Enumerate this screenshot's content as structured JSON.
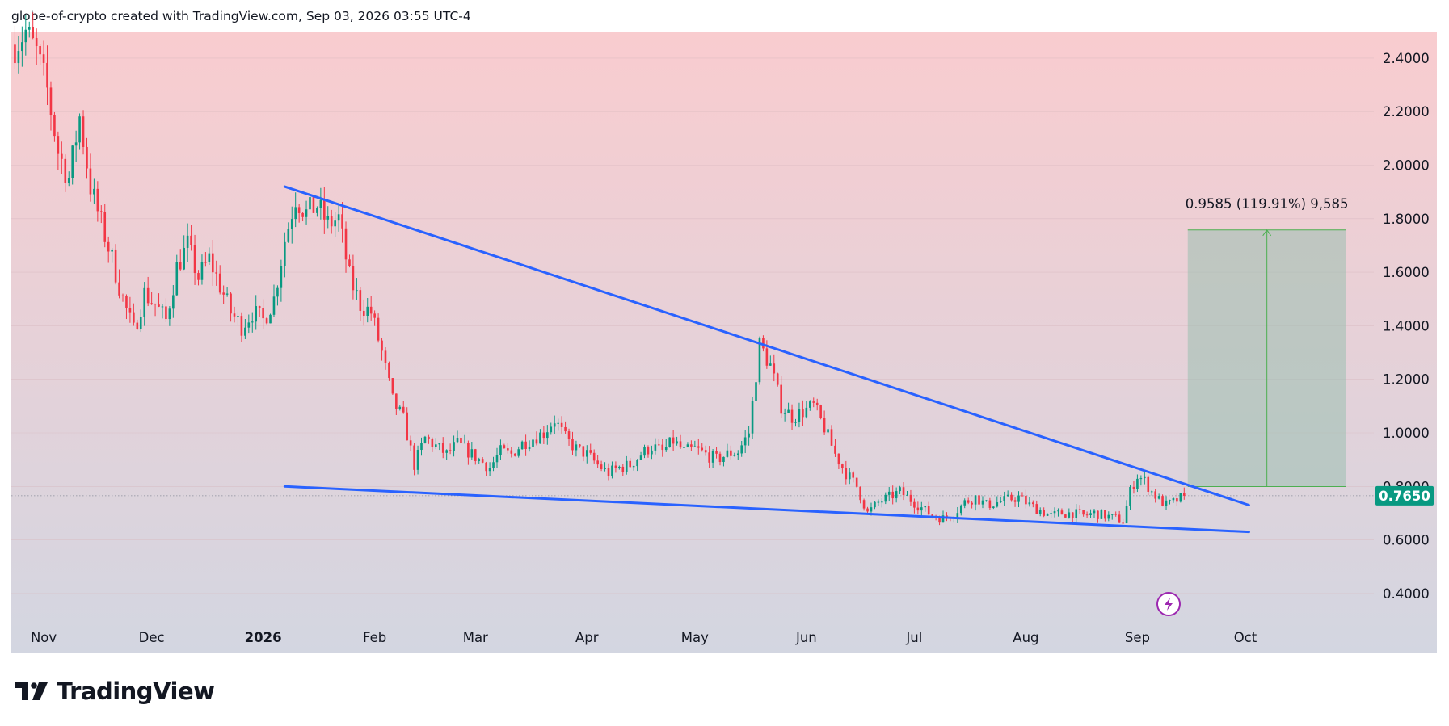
{
  "header": {
    "attribution": "globe-of-crypto created with TradingView.com, Sep 03, 2026 03:55 UTC-4"
  },
  "brand": {
    "name": "TradingView",
    "logo_icon": "tradingview-logo-icon"
  },
  "colors": {
    "bull": "#089981",
    "bear": "#f23645",
    "trendline": "#2962ff",
    "target_box_fill": "#9bbfb0",
    "target_arrow": "#4caf50",
    "price_badge": "#089981",
    "flash_icon": "#9c27b0"
  },
  "chart_data": {
    "type": "candlestick",
    "timeframe_note": "daily candles",
    "x_ticks": [
      "Nov",
      "Dec",
      "2026",
      "Feb",
      "Mar",
      "Apr",
      "May",
      "Jun",
      "Jul",
      "Aug",
      "Sep",
      "Oct"
    ],
    "y_ticks": [
      "2.4000",
      "2.2000",
      "2.0000",
      "1.8000",
      "1.6000",
      "1.4000",
      "1.2000",
      "1.0000",
      "0.8000",
      "0.6000",
      "0.4000"
    ],
    "y_range": [
      0.3,
      2.5
    ],
    "x_range": [
      "2025-10-23",
      "2026-10-27"
    ],
    "last_price": "0.7650",
    "price_path": [
      [
        "2025-10-24",
        2.45
      ],
      [
        "2025-10-27",
        2.5
      ],
      [
        "2025-10-30",
        2.42
      ],
      [
        "2025-11-02",
        2.28
      ],
      [
        "2025-11-05",
        2.05
      ],
      [
        "2025-11-08",
        1.95
      ],
      [
        "2025-11-11",
        2.18
      ],
      [
        "2025-11-14",
        1.92
      ],
      [
        "2025-11-17",
        1.78
      ],
      [
        "2025-11-20",
        1.65
      ],
      [
        "2025-11-23",
        1.5
      ],
      [
        "2025-11-26",
        1.38
      ],
      [
        "2025-11-29",
        1.52
      ],
      [
        "2025-12-02",
        1.48
      ],
      [
        "2025-12-05",
        1.42
      ],
      [
        "2025-12-08",
        1.62
      ],
      [
        "2025-12-11",
        1.7
      ],
      [
        "2025-12-14",
        1.58
      ],
      [
        "2025-12-17",
        1.65
      ],
      [
        "2025-12-20",
        1.55
      ],
      [
        "2025-12-23",
        1.45
      ],
      [
        "2025-12-26",
        1.4
      ],
      [
        "2025-12-29",
        1.45
      ],
      [
        "2026-01-01",
        1.42
      ],
      [
        "2026-01-04",
        1.5
      ],
      [
        "2026-01-07",
        1.72
      ],
      [
        "2026-01-10",
        1.88
      ],
      [
        "2026-01-13",
        1.82
      ],
      [
        "2026-01-16",
        1.85
      ],
      [
        "2026-01-19",
        1.78
      ],
      [
        "2026-01-22",
        1.8
      ],
      [
        "2026-01-25",
        1.58
      ],
      [
        "2026-01-28",
        1.48
      ],
      [
        "2026-01-31",
        1.45
      ],
      [
        "2026-02-03",
        1.3
      ],
      [
        "2026-02-06",
        1.12
      ],
      [
        "2026-02-09",
        1.05
      ],
      [
        "2026-02-12",
        0.88
      ],
      [
        "2026-02-15",
        0.98
      ],
      [
        "2026-02-18",
        0.95
      ],
      [
        "2026-02-21",
        0.92
      ],
      [
        "2026-02-24",
        0.96
      ],
      [
        "2026-02-27",
        0.93
      ],
      [
        "2026-03-02",
        0.9
      ],
      [
        "2026-03-05",
        0.87
      ],
      [
        "2026-03-08",
        0.93
      ],
      [
        "2026-03-11",
        0.92
      ],
      [
        "2026-03-14",
        0.96
      ],
      [
        "2026-03-17",
        0.98
      ],
      [
        "2026-03-20",
        1.0
      ],
      [
        "2026-03-23",
        1.05
      ],
      [
        "2026-03-26",
        0.98
      ],
      [
        "2026-03-29",
        0.94
      ],
      [
        "2026-04-01",
        0.92
      ],
      [
        "2026-04-04",
        0.88
      ],
      [
        "2026-04-07",
        0.85
      ],
      [
        "2026-04-10",
        0.87
      ],
      [
        "2026-04-13",
        0.88
      ],
      [
        "2026-04-16",
        0.92
      ],
      [
        "2026-04-19",
        0.95
      ],
      [
        "2026-04-22",
        0.93
      ],
      [
        "2026-04-25",
        0.97
      ],
      [
        "2026-04-28",
        0.93
      ],
      [
        "2026-05-01",
        0.94
      ],
      [
        "2026-05-04",
        0.92
      ],
      [
        "2026-05-07",
        0.9
      ],
      [
        "2026-05-10",
        0.92
      ],
      [
        "2026-05-13",
        0.93
      ],
      [
        "2026-05-16",
        1.0
      ],
      [
        "2026-05-19",
        1.33
      ],
      [
        "2026-05-22",
        1.25
      ],
      [
        "2026-05-25",
        1.1
      ],
      [
        "2026-05-28",
        1.06
      ],
      [
        "2026-05-31",
        1.08
      ],
      [
        "2026-06-03",
        1.1
      ],
      [
        "2026-06-06",
        1.02
      ],
      [
        "2026-06-09",
        0.92
      ],
      [
        "2026-06-12",
        0.85
      ],
      [
        "2026-06-15",
        0.8
      ],
      [
        "2026-06-18",
        0.7
      ],
      [
        "2026-06-21",
        0.74
      ],
      [
        "2026-06-24",
        0.76
      ],
      [
        "2026-06-27",
        0.78
      ],
      [
        "2026-06-30",
        0.75
      ],
      [
        "2026-07-03",
        0.72
      ],
      [
        "2026-07-06",
        0.69
      ],
      [
        "2026-07-09",
        0.68
      ],
      [
        "2026-07-12",
        0.7
      ],
      [
        "2026-07-15",
        0.74
      ],
      [
        "2026-07-18",
        0.76
      ],
      [
        "2026-07-21",
        0.73
      ],
      [
        "2026-07-24",
        0.74
      ],
      [
        "2026-07-27",
        0.75
      ],
      [
        "2026-07-30",
        0.76
      ],
      [
        "2026-08-02",
        0.73
      ],
      [
        "2026-08-05",
        0.71
      ],
      [
        "2026-08-08",
        0.69
      ],
      [
        "2026-08-11",
        0.7
      ],
      [
        "2026-08-14",
        0.7
      ],
      [
        "2026-08-17",
        0.69
      ],
      [
        "2026-08-20",
        0.7
      ],
      [
        "2026-08-23",
        0.69
      ],
      [
        "2026-08-26",
        0.68
      ],
      [
        "2026-08-28",
        0.67
      ],
      [
        "2026-08-30",
        0.78
      ],
      [
        "2026-09-01",
        0.84
      ],
      [
        "2026-09-03",
        0.82
      ],
      [
        "2026-09-05",
        0.78
      ],
      [
        "2026-09-07",
        0.75
      ],
      [
        "2026-09-09",
        0.73
      ],
      [
        "2026-09-11",
        0.74
      ],
      [
        "2026-09-14",
        0.765
      ]
    ],
    "trendlines": [
      {
        "name": "upper-trendline",
        "points": [
          [
            "2026-01-07",
            1.92
          ],
          [
            "2026-10-02",
            0.73
          ]
        ]
      },
      {
        "name": "lower-trendline",
        "points": [
          [
            "2026-01-07",
            0.8
          ],
          [
            "2026-10-02",
            0.63
          ]
        ]
      }
    ],
    "measure": {
      "label": "0.9585 (119.91%) 9,585",
      "x_start": "2026-09-15",
      "x_end": "2026-10-29",
      "from_price": 0.7993,
      "to_price": 1.7578
    }
  }
}
